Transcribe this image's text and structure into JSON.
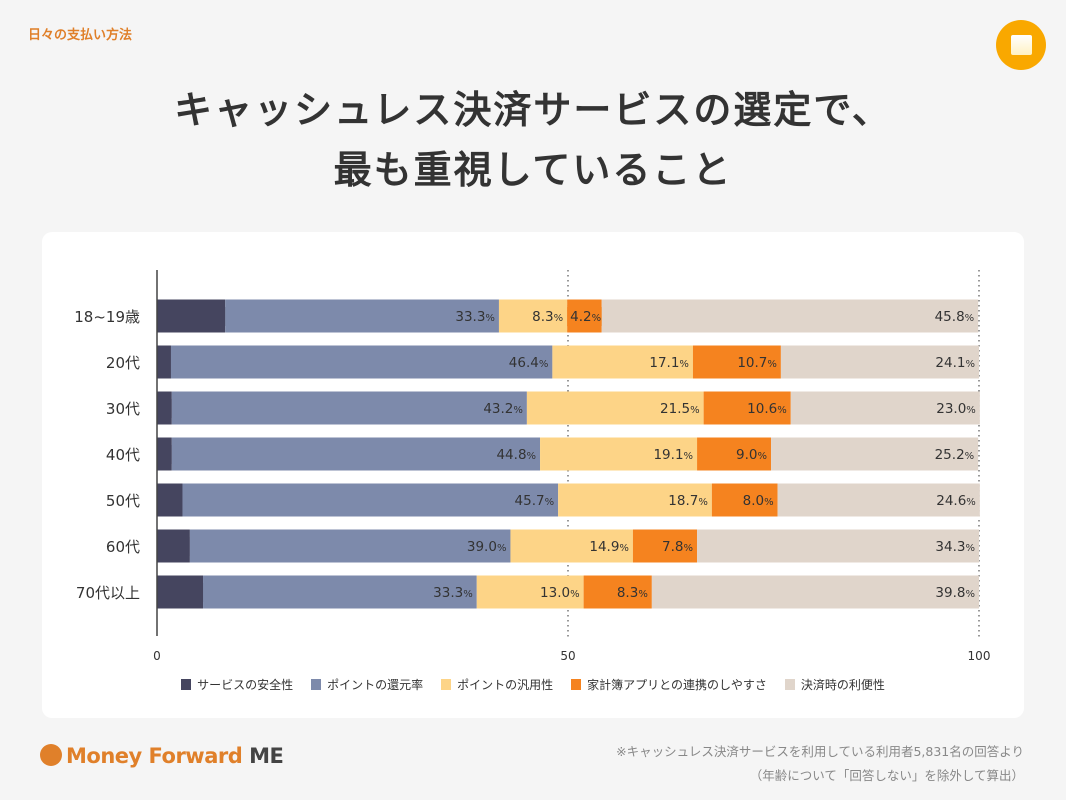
{
  "header": {
    "tag": "日々の支払い方法",
    "title_line1": "キャッシュレス決済サービスの選定で、",
    "title_line2": "最も重視していること",
    "icon": "wallet-icon"
  },
  "chart_data": {
    "type": "bar",
    "orientation": "horizontal",
    "stacked": true,
    "categories": [
      "18~19歳",
      "20代",
      "30代",
      "40代",
      "50代",
      "60代",
      "70代以上"
    ],
    "xlim": [
      0,
      100
    ],
    "xticks": [
      0,
      50,
      100
    ],
    "grid": "dotted at 50 and 100",
    "legend": "bottom",
    "series": [
      {
        "name": "サービスの安全性",
        "color": "#45455f",
        "values": [
          8.3,
          1.7,
          1.8,
          1.8,
          3.1,
          4.0,
          5.6
        ]
      },
      {
        "name": "ポイントの還元率",
        "color": "#7d8aab",
        "values": [
          33.3,
          46.4,
          43.2,
          44.8,
          45.7,
          39.0,
          33.3
        ]
      },
      {
        "name": "ポイントの汎用性",
        "color": "#fdd487",
        "values": [
          8.3,
          17.1,
          21.5,
          19.1,
          18.7,
          14.9,
          13.0
        ]
      },
      {
        "name": "家計簿アプリとの連携のしやすさ",
        "color": "#f5831f",
        "values": [
          4.2,
          10.7,
          10.6,
          9.0,
          8.0,
          7.8,
          8.3
        ]
      },
      {
        "name": "決済時の利便性",
        "color": "#e0d5cb",
        "values": [
          45.8,
          24.1,
          23.0,
          25.2,
          24.6,
          34.3,
          39.8
        ]
      }
    ],
    "unit": "%"
  },
  "footer": {
    "logo_text": "Money Forward",
    "logo_me": "ME",
    "note_line1": "※キャッシュレス決済サービスを利用している利用者5,831名の回答より",
    "note_line2": "（年齢について「回答しない」を除外して算出）"
  }
}
